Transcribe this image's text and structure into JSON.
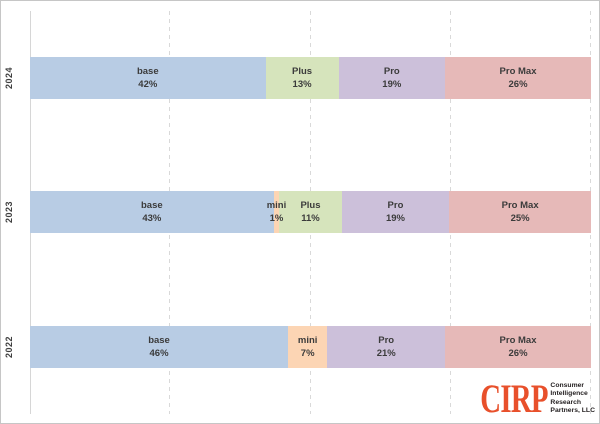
{
  "chart_data": {
    "type": "bar",
    "variant": "horizontal-stacked-100pct",
    "categories": [
      "2024",
      "2023",
      "2022"
    ],
    "series_order": [
      "base",
      "mini",
      "Plus",
      "Pro",
      "Pro Max"
    ],
    "rows": [
      {
        "year": "2024",
        "segments": [
          {
            "label": "base",
            "value": 42,
            "value_text": "42%"
          },
          {
            "label": "Plus",
            "value": 13,
            "value_text": "13%"
          },
          {
            "label": "Pro",
            "value": 19,
            "value_text": "19%"
          },
          {
            "label": "Pro Max",
            "value": 26,
            "value_text": "26%"
          }
        ]
      },
      {
        "year": "2023",
        "segments": [
          {
            "label": "base",
            "value": 43,
            "value_text": "43%"
          },
          {
            "label": "mini",
            "value": 1,
            "value_text": "1%"
          },
          {
            "label": "Plus",
            "value": 11,
            "value_text": "11%"
          },
          {
            "label": "Pro",
            "value": 19,
            "value_text": "19%"
          },
          {
            "label": "Pro Max",
            "value": 25,
            "value_text": "25%"
          }
        ]
      },
      {
        "year": "2022",
        "segments": [
          {
            "label": "base",
            "value": 46,
            "value_text": "46%"
          },
          {
            "label": "mini",
            "value": 7,
            "value_text": "7%"
          },
          {
            "label": "Pro",
            "value": 21,
            "value_text": "21%"
          },
          {
            "label": "Pro Max",
            "value": 26,
            "value_text": "26%"
          }
        ]
      }
    ],
    "colors": {
      "base": "#b8cce4",
      "mini": "#fcd5b4",
      "Plus": "#d6e4bc",
      "Pro": "#ccc0da",
      "Pro Max": "#e6b9b8"
    },
    "xlim": [
      0,
      100
    ],
    "gridlines_pct": [
      25,
      50,
      75,
      100
    ],
    "grid_color": "#d9d9d9",
    "axis_color": "#d6d6d6",
    "label_color": "#3b3b3b",
    "title": "",
    "xlabel": "",
    "ylabel": ""
  },
  "logo": {
    "mark": "CIRP",
    "mark_color": "#e8502b",
    "lines": [
      "Consumer",
      "Intelligence",
      "Research",
      "Partners, LLC"
    ]
  }
}
